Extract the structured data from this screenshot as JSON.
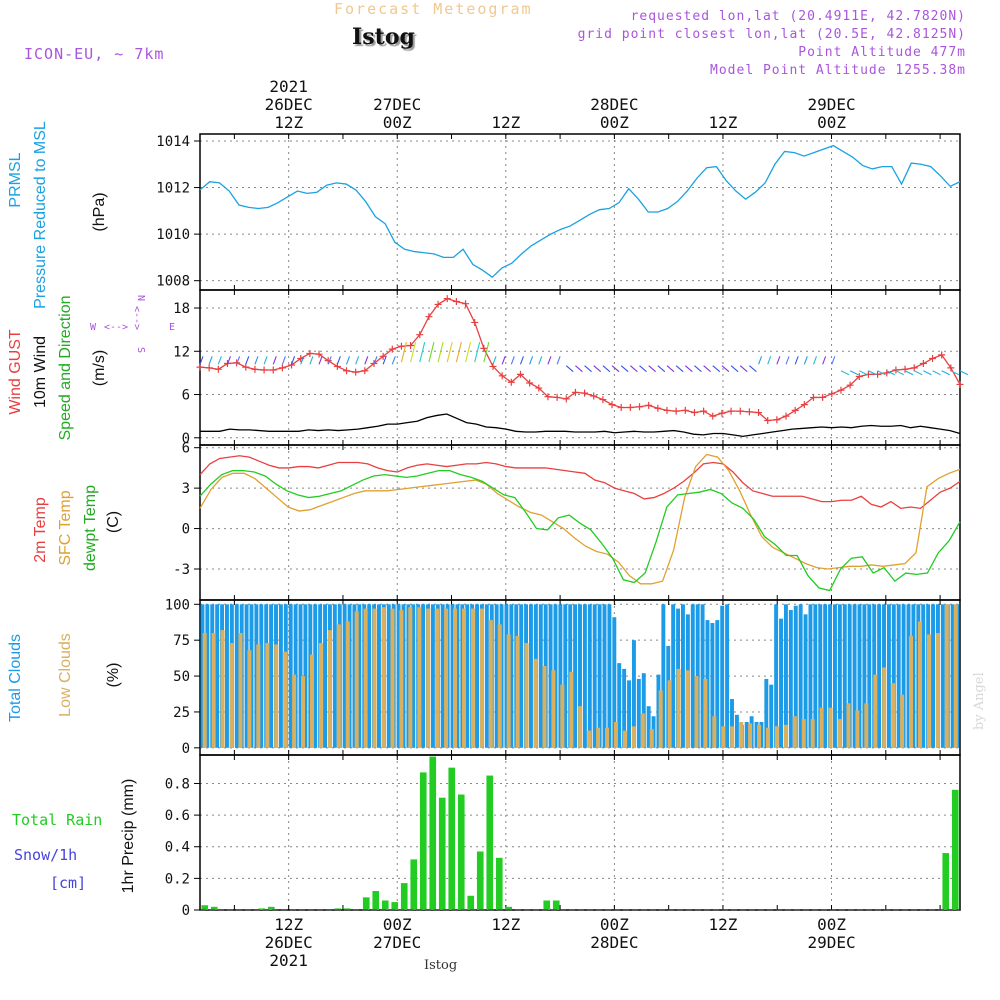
{
  "header": {
    "title": "Forecast Meteogram",
    "station": "Istog",
    "model": "ICON-EU, ~ 7km",
    "requested": "requested lon,lat (20.4911E, 42.7820N)",
    "gridpoint": "grid point closest lon,lat (20.5E, 42.8125N)",
    "point_alt": "Point Altitude 477m",
    "model_alt": "Model Point Altitude 1255.38m"
  },
  "footer": {
    "station": "Istog",
    "credit": "by Angel"
  },
  "colors": {
    "pressure": "#1ba1e2",
    "gust": "#e84040",
    "wind": "#000000",
    "t2m": "#e84040",
    "tsfc": "#e0a030",
    "dewpt": "#22cc22",
    "total_clouds": "#1b9be8",
    "low_clouds": "#d8b060",
    "rain": "#22cc22",
    "snow": "#4444dd",
    "meta": "#aa55dd"
  },
  "chart_data": [
    {
      "id": "pressure",
      "type": "line",
      "title": "PRMSL Pressure Reduced to MSL",
      "ylabel": [
        "PRMSL",
        "Pressure Reduced to MSL"
      ],
      "unit": "(hPa)",
      "ylim": [
        1007.6,
        1014.3
      ],
      "yticks": [
        1008,
        1010,
        1012,
        1014
      ],
      "xtime_top": [
        {
          "l1": "2021",
          "l2": "26DEC",
          "l3": "12Z",
          "h": 12
        },
        {
          "l2": "27DEC",
          "l3": "00Z",
          "h": 24
        },
        {
          "l3": "12Z",
          "h": 36
        },
        {
          "l2": "28DEC",
          "l3": "00Z",
          "h": 48
        },
        {
          "l3": "12Z",
          "h": 60
        },
        {
          "l2": "29DEC",
          "l3": "00Z",
          "h": 72
        }
      ],
      "series": [
        {
          "name": "PRMSL",
          "values": [
            1011.9,
            1012.25,
            1012.2,
            1011.85,
            1011.25,
            1011.15,
            1011.1,
            1011.15,
            1011.35,
            1011.6,
            1011.85,
            1011.75,
            1011.8,
            1012.1,
            1012.2,
            1012.15,
            1011.9,
            1011.4,
            1010.75,
            1010.45,
            1009.65,
            1009.35,
            1009.25,
            1009.2,
            1009.15,
            1009.0,
            1009.0,
            1009.35,
            1008.7,
            1008.45,
            1008.15,
            1008.55,
            1008.75,
            1009.15,
            1009.5,
            1009.75,
            1010.0,
            1010.2,
            1010.35,
            1010.6,
            1010.85,
            1011.05,
            1011.1,
            1011.35,
            1011.95,
            1011.5,
            1010.95,
            1010.95,
            1011.1,
            1011.4,
            1011.85,
            1012.4,
            1012.85,
            1012.9,
            1012.3,
            1011.85,
            1011.5,
            1011.8,
            1012.2,
            1013.0,
            1013.55,
            1013.5,
            1013.35,
            1013.5,
            1013.65,
            1013.8,
            1013.55,
            1013.3,
            1012.95,
            1012.8,
            1012.9,
            1012.9,
            1012.15,
            1013.05,
            1013.0,
            1012.9,
            1012.5,
            1012.05,
            1012.25
          ]
        }
      ]
    },
    {
      "id": "wind",
      "type": "line",
      "title": "Wind GUST, 10m Wind Speed and Direction",
      "ylabel": [
        "Wind GUST",
        "10m Wind",
        "Speed and Direction"
      ],
      "unit": "(m/s)",
      "compass": {
        "north": "N",
        "south": "S",
        "west": "W",
        "east": "E",
        "arrows": "<-->"
      },
      "ylim": [
        -1,
        20.5
      ],
      "yticks": [
        0,
        6,
        12,
        18
      ],
      "series": [
        {
          "name": "Wind GUST",
          "values": [
            9.8,
            9.7,
            9.5,
            10.3,
            10.4,
            9.8,
            9.5,
            9.4,
            9.4,
            9.7,
            10.1,
            11.0,
            11.7,
            11.6,
            10.7,
            9.9,
            9.3,
            9.1,
            9.3,
            10.3,
            11.3,
            12.3,
            12.7,
            12.8,
            14.3,
            16.8,
            18.5,
            19.3,
            18.9,
            18.6,
            16.0,
            12.4,
            9.9,
            8.6,
            7.7,
            8.8,
            7.6,
            6.9,
            5.7,
            5.6,
            5.4,
            6.3,
            6.2,
            5.8,
            5.3,
            4.6,
            4.2,
            4.2,
            4.3,
            4.5,
            4.1,
            3.8,
            3.7,
            3.8,
            3.5,
            3.7,
            3.0,
            3.4,
            3.7,
            3.7,
            3.6,
            3.5,
            2.4,
            2.5,
            3.0,
            3.8,
            4.6,
            5.6,
            5.6,
            6.1,
            6.6,
            7.3,
            8.5,
            8.8,
            8.8,
            9.0,
            9.4,
            9.5,
            9.7,
            10.3,
            11.0,
            11.5,
            9.7,
            7.4
          ]
        },
        {
          "name": "10m Wind",
          "values": [
            0.9,
            0.9,
            0.9,
            1.2,
            1.1,
            1.1,
            1.0,
            0.9,
            0.9,
            0.9,
            0.9,
            1.1,
            1.0,
            1.1,
            1.0,
            1.1,
            1.2,
            1.4,
            1.6,
            1.9,
            1.9,
            2.1,
            2.3,
            2.8,
            3.1,
            3.3,
            2.7,
            2.1,
            1.9,
            1.5,
            1.4,
            1.2,
            0.9,
            0.8,
            0.8,
            0.9,
            0.9,
            0.9,
            0.8,
            0.8,
            0.8,
            0.9,
            0.7,
            0.8,
            0.9,
            0.8,
            0.8,
            0.9,
            1.0,
            0.8,
            0.5,
            0.4,
            0.6,
            0.6,
            0.4,
            0.2,
            0.4,
            0.6,
            0.8,
            1.0,
            1.2,
            1.3,
            1.4,
            1.5,
            1.4,
            1.5,
            1.4,
            1.6,
            1.7,
            1.6,
            1.6,
            1.7,
            1.4,
            1.6,
            1.4,
            1.2,
            1.0,
            0.6
          ]
        }
      ]
    },
    {
      "id": "temperature",
      "type": "line",
      "title": "2m Temp, SFC Temp, dewpt Temp",
      "ylabel": [
        "2m Temp",
        "SFC Temp",
        "dewpt Temp"
      ],
      "unit": "(C)",
      "ylim": [
        -5.3,
        6.2
      ],
      "yticks": [
        -3,
        0,
        3,
        6
      ],
      "series": [
        {
          "name": "2m Temp",
          "values": [
            4.0,
            4.8,
            5.2,
            5.3,
            5.4,
            5.3,
            5.0,
            4.7,
            4.5,
            4.5,
            4.6,
            4.6,
            4.5,
            4.7,
            4.9,
            4.9,
            4.9,
            4.8,
            4.5,
            4.3,
            4.2,
            4.5,
            4.7,
            4.8,
            4.7,
            4.6,
            4.7,
            4.8,
            4.8,
            4.9,
            4.8,
            4.6,
            4.5,
            4.5,
            4.5,
            4.5,
            4.4,
            4.3,
            4.2,
            4.1,
            3.6,
            3.4,
            3.0,
            2.8,
            2.6,
            2.2,
            2.3,
            2.6,
            3.0,
            3.5,
            4.1,
            4.8,
            4.9,
            4.8,
            4.2,
            3.4,
            2.8,
            2.6,
            2.4,
            2.4,
            2.4,
            2.4,
            2.2,
            2.0,
            2.0,
            2.1,
            2.1,
            2.4,
            1.8,
            1.6,
            2.0,
            1.5,
            1.6,
            1.5,
            2.1,
            2.7,
            3.0,
            3.5
          ]
        },
        {
          "name": "SFC Temp",
          "values": [
            1.5,
            2.9,
            3.8,
            4.1,
            4.1,
            3.7,
            3.0,
            2.3,
            1.6,
            1.3,
            1.4,
            1.7,
            2.0,
            2.3,
            2.6,
            2.8,
            2.8,
            2.8,
            2.9,
            3.0,
            3.1,
            3.2,
            3.3,
            3.4,
            3.5,
            3.6,
            3.3,
            2.6,
            2.1,
            1.6,
            1.2,
            1.0,
            0.5,
            0.0,
            -0.7,
            -1.3,
            -1.7,
            -1.9,
            -2.5,
            -3.5,
            -4.1,
            -4.1,
            -3.9,
            -1.6,
            2.3,
            4.6,
            5.5,
            5.3,
            4.3,
            2.8,
            1.0,
            -0.6,
            -1.4,
            -1.8,
            -2.2,
            -2.6,
            -2.9,
            -3.0,
            -2.9,
            -2.8,
            -2.8,
            -2.7,
            -2.8,
            -2.7,
            -2.6,
            -1.8,
            3.1,
            3.7,
            4.1,
            4.4
          ]
        },
        {
          "name": "dewpt Temp",
          "values": [
            2.4,
            3.3,
            4.0,
            4.3,
            4.3,
            4.2,
            3.9,
            3.3,
            2.8,
            2.5,
            2.3,
            2.4,
            2.6,
            2.8,
            3.2,
            3.6,
            3.9,
            4.0,
            3.9,
            3.8,
            3.9,
            4.1,
            4.3,
            4.3,
            4.0,
            3.8,
            3.5,
            3.0,
            2.5,
            2.3,
            1.2,
            0.0,
            -0.1,
            0.8,
            1.0,
            0.4,
            -0.1,
            -1.1,
            -2.2,
            -3.8,
            -4.0,
            -3.3,
            -1.0,
            1.6,
            2.5,
            2.6,
            2.7,
            2.9,
            2.6,
            1.9,
            1.5,
            0.7,
            -0.6,
            -1.2,
            -2.0,
            -2.0,
            -3.5,
            -4.4,
            -4.6,
            -3.0,
            -2.2,
            -2.1,
            -3.3,
            -2.9,
            -3.9,
            -3.3,
            -3.4,
            -3.3,
            -1.8,
            -0.9,
            0.5
          ]
        }
      ]
    },
    {
      "id": "clouds",
      "type": "bar",
      "title": "Total Clouds, Low Clouds",
      "ylabel": [
        "Total Clouds",
        "Low Clouds"
      ],
      "unit": "(%)",
      "ylim": [
        -5,
        103
      ],
      "yticks": [
        0,
        25,
        50,
        75,
        100
      ],
      "series": [
        {
          "name": "Total Clouds",
          "values": [
            100,
            100,
            100,
            100,
            100,
            100,
            100,
            100,
            100,
            100,
            100,
            100,
            100,
            100,
            100,
            100,
            100,
            100,
            100,
            100,
            100,
            100,
            100,
            100,
            100,
            100,
            100,
            100,
            100,
            100,
            100,
            100,
            100,
            100,
            100,
            100,
            100,
            100,
            100,
            100,
            100,
            100,
            100,
            100,
            100,
            100,
            100,
            100,
            100,
            100,
            100,
            100,
            100,
            100,
            100,
            100,
            100,
            100,
            100,
            100,
            100,
            100,
            100,
            100,
            100,
            100,
            100,
            100,
            100,
            100,
            100,
            100,
            100,
            100,
            100,
            100,
            100,
            100,
            100,
            100,
            100,
            100,
            100,
            100,
            91,
            59,
            55,
            47,
            75,
            48,
            52,
            29,
            22,
            51,
            100,
            71,
            100,
            97,
            100,
            93,
            100,
            100,
            100,
            89,
            87,
            89,
            99,
            100,
            34,
            23,
            16,
            18,
            22,
            18,
            18,
            48,
            44,
            100,
            90,
            100,
            96,
            99,
            100,
            93,
            100,
            100,
            100,
            100,
            100,
            100,
            100,
            100,
            100,
            100,
            100,
            100,
            100,
            100,
            100,
            100,
            100,
            100,
            100,
            100,
            100,
            100,
            100,
            100,
            100,
            100,
            100,
            100,
            100,
            100,
            100
          ]
        },
        {
          "name": "Low Clouds",
          "values": [
            80,
            80,
            82,
            73,
            80,
            68,
            72,
            73,
            72,
            67,
            51,
            50,
            65,
            73,
            82,
            86,
            88,
            95,
            97,
            97,
            98,
            97,
            96,
            98,
            98,
            97,
            97,
            97,
            97,
            97,
            97,
            97,
            89,
            86,
            79,
            78,
            73,
            62,
            57,
            54,
            44,
            53,
            29,
            12,
            14,
            14,
            18,
            12,
            15,
            24,
            13,
            40,
            47,
            55,
            54,
            50,
            48,
            22,
            15,
            15,
            18,
            17,
            16,
            14,
            15,
            16,
            22,
            20,
            20,
            28,
            28,
            20,
            31,
            26,
            31,
            51,
            56,
            45,
            37,
            78,
            88,
            79,
            80,
            100,
            100
          ]
        }
      ]
    },
    {
      "id": "precip",
      "type": "bar",
      "title": "Total Rain, Snow/1h [cm]",
      "ylabel": [
        "1hr Precip (mm)"
      ],
      "left_labels": {
        "rain": "Total  Rain",
        "snow": "Snow/1h",
        "snow_unit": "[cm]"
      },
      "ylim": [
        0,
        0.98
      ],
      "yticks": [
        0,
        0.2,
        0.4,
        0.6,
        0.8
      ],
      "xtime_bottom": [
        {
          "l1": "12Z",
          "l2": "26DEC",
          "l3": "2021",
          "h": 12
        },
        {
          "l1": "00Z",
          "l2": "27DEC",
          "h": 24
        },
        {
          "l1": "12Z",
          "h": 36
        },
        {
          "l1": "00Z",
          "l2": "28DEC",
          "h": 48
        },
        {
          "l1": "12Z",
          "h": 60
        },
        {
          "l1": "00Z",
          "l2": "29DEC",
          "h": 72
        }
      ],
      "series": [
        {
          "name": "Total Rain",
          "values": [
            0.03,
            0.02,
            0,
            0,
            0,
            0,
            0.01,
            0.02,
            0,
            0,
            0,
            0,
            0,
            0,
            0.01,
            0.01,
            0,
            0.08,
            0.12,
            0.06,
            0.05,
            0.17,
            0.32,
            0.87,
            0.97,
            0.71,
            0.9,
            0.73,
            0.09,
            0.37,
            0.85,
            0.33,
            0.02,
            0,
            0,
            0,
            0.06,
            0.06,
            0,
            0,
            0,
            0,
            0,
            0,
            0,
            0,
            0,
            0,
            0,
            0,
            0,
            0,
            0,
            0,
            0,
            0,
            0,
            0,
            0,
            0,
            0,
            0,
            0,
            0,
            0,
            0,
            0,
            0,
            0,
            0,
            0,
            0,
            0,
            0,
            0,
            0,
            0,
            0,
            0.36,
            0.76
          ]
        }
      ]
    }
  ]
}
